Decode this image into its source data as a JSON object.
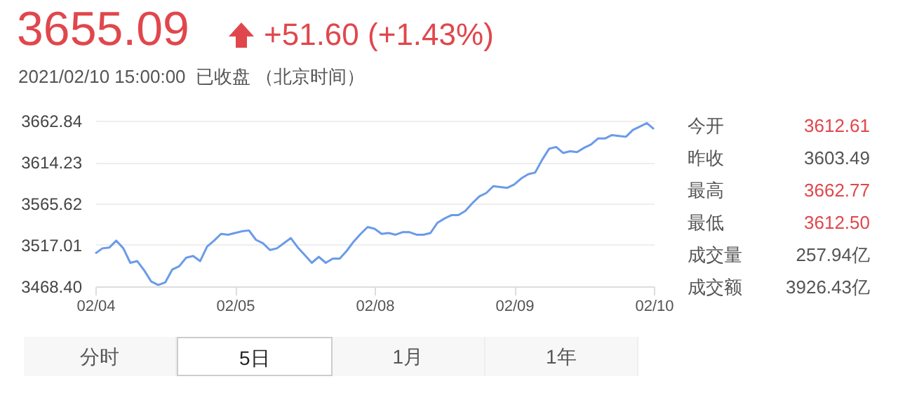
{
  "chart_data": {
    "type": "line",
    "title": "3655.09",
    "subtitle": "+51.60 (+1.43%)",
    "categories": [
      "02/04",
      null,
      null,
      null,
      null,
      null,
      null,
      null,
      null,
      null,
      null,
      null,
      null,
      null,
      null,
      null,
      null,
      null,
      null,
      null,
      "02/05",
      null,
      null,
      null,
      null,
      null,
      null,
      null,
      null,
      null,
      null,
      null,
      null,
      null,
      null,
      null,
      null,
      null,
      null,
      null,
      "02/08",
      null,
      null,
      null,
      null,
      null,
      null,
      null,
      null,
      null,
      null,
      null,
      null,
      null,
      null,
      null,
      null,
      null,
      null,
      null,
      "02/09",
      null,
      null,
      null,
      null,
      null,
      null,
      null,
      null,
      null,
      null,
      null,
      null,
      null,
      null,
      null,
      null,
      null,
      null,
      null,
      "02/10"
    ],
    "series": [
      {
        "color": "#6a9be8",
        "values": [
          3507,
          3513,
          3514,
          3522,
          3513,
          3496,
          3498,
          3487,
          3474,
          3470,
          3473,
          3488,
          3492,
          3502,
          3504,
          3498,
          3515,
          3522,
          3530,
          3529,
          3531,
          3533,
          3534,
          3523,
          3519,
          3511,
          3513,
          3519,
          3525,
          3514,
          3505,
          3496,
          3503,
          3496,
          3501,
          3501,
          3510,
          3521,
          3530,
          3538,
          3536,
          3530,
          3531,
          3529,
          3532,
          3532,
          3529,
          3529,
          3531,
          3543,
          3548,
          3552,
          3552,
          3557,
          3566,
          3574,
          3578,
          3586,
          3585,
          3584,
          3588,
          3595,
          3600,
          3602,
          3617,
          3630,
          3632,
          3625,
          3627,
          3626,
          3631,
          3635,
          3642,
          3642,
          3646,
          3645,
          3644,
          3652,
          3656,
          3660,
          3653
        ]
      }
    ],
    "ylim": [
      3468.4,
      3662.84
    ],
    "yticks": [
      {
        "value": 3468.4,
        "label": "3468.40"
      },
      {
        "value": 3517.01,
        "label": "3517.01"
      },
      {
        "value": 3565.62,
        "label": "3565.62"
      },
      {
        "value": 3614.23,
        "label": "3614.23"
      },
      {
        "value": 3662.84,
        "label": "3662.84"
      }
    ],
    "grid": "y",
    "annotations": [
      "2021/02/10 15:00:00  已收盘 （北京时间）",
      "今开",
      "3612.61",
      "昨收",
      "3603.49",
      "最高",
      "3662.77",
      "最低",
      "3612.50",
      "成交量",
      "257.94亿",
      "成交额",
      "3926.43亿",
      "分时",
      "5日",
      "1月",
      "1年"
    ]
  }
}
